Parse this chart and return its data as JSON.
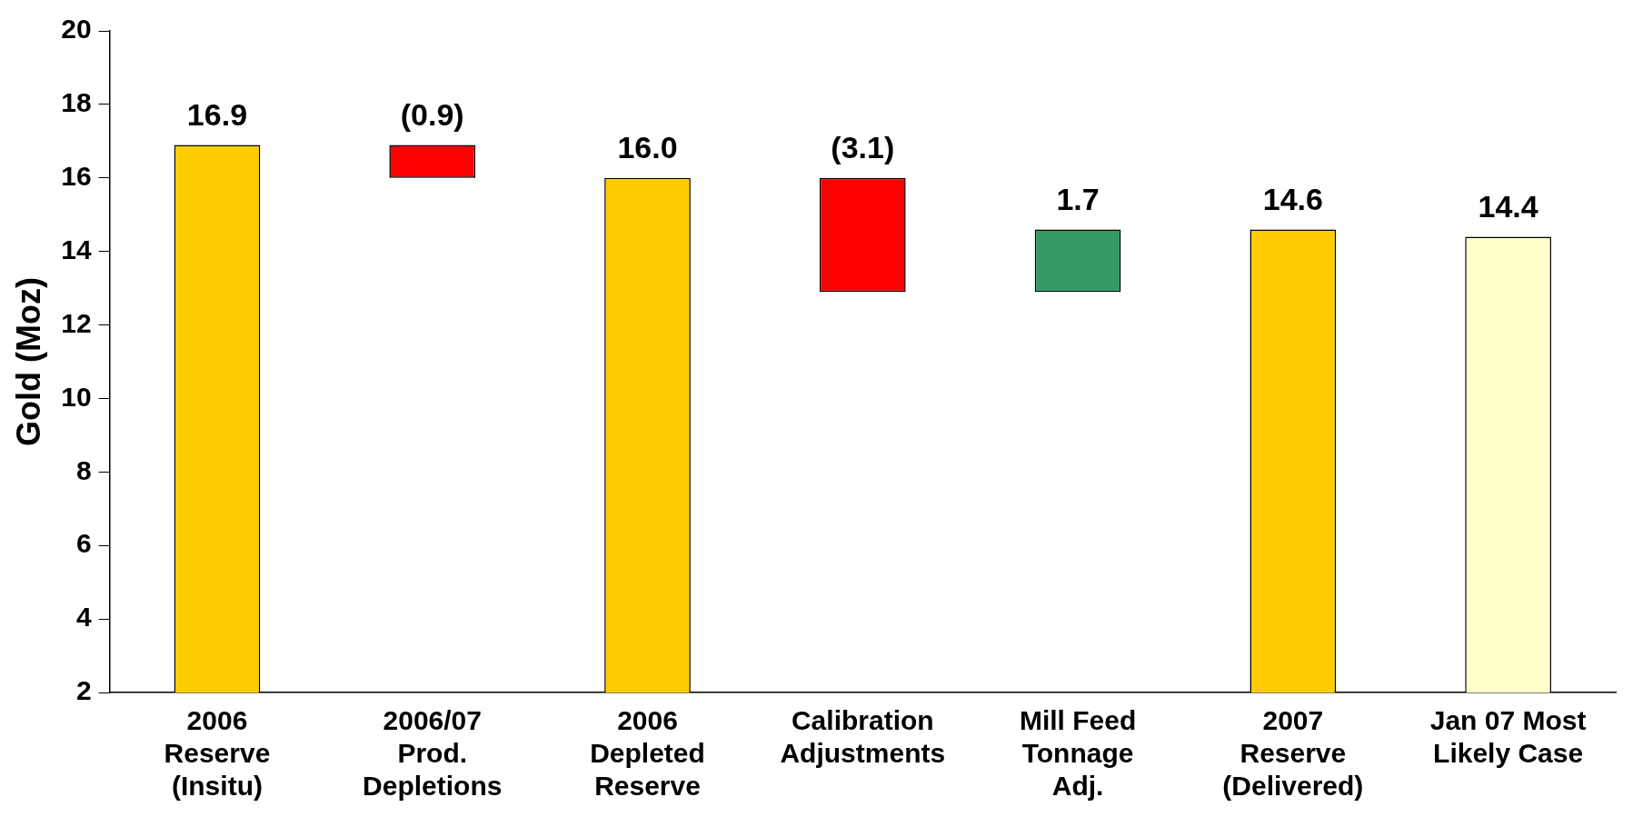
{
  "chart_data": {
    "type": "bar",
    "ylabel": "Gold (Moz)",
    "categories": [
      "2006\nReserve\n(Insitu)",
      "2006/07\nProd.\nDepletions",
      "2006\nDepleted\nReserve",
      "Calibration\nAdjustments",
      "Mill Feed\nTonnage\nAdj.",
      "2007\nReserve\n(Delivered)",
      "Jan 07 Most\nLikely Case"
    ],
    "values": [
      16.9,
      -0.9,
      16.0,
      -3.1,
      1.7,
      14.6,
      14.4
    ],
    "base": [
      null,
      16.9,
      null,
      16.0,
      12.9,
      null,
      null
    ],
    "colors": [
      "#ffcc00",
      "#ff0000",
      "#ffcc00",
      "#ff0000",
      "#339966",
      "#ffcc00",
      "#ffffcc"
    ],
    "value_labels": [
      "16.9",
      "(0.9)",
      "16.0",
      "(3.1)",
      "1.7",
      "14.6",
      "14.4"
    ],
    "ylim": [
      2,
      20
    ],
    "yticks": [
      2,
      4,
      6,
      8,
      10,
      12,
      14,
      16,
      18,
      20
    ],
    "grid": false,
    "legend": false
  }
}
